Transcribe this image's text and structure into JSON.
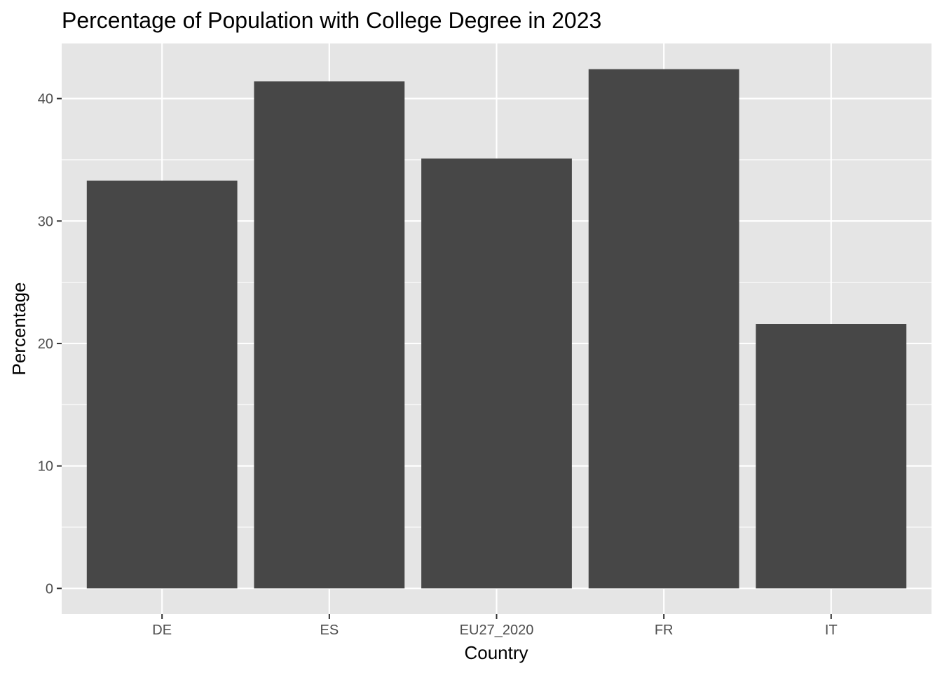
{
  "chart_data": {
    "type": "bar",
    "title": "Percentage of Population with College Degree in 2023",
    "xlabel": "Country",
    "ylabel": "Percentage",
    "categories": [
      "DE",
      "ES",
      "EU27_2020",
      "FR",
      "IT"
    ],
    "values": [
      33.3,
      41.4,
      35.1,
      42.4,
      21.6
    ],
    "ylim": [
      -2.1,
      44.5
    ],
    "yticks": [
      "0",
      "10",
      "20",
      "30",
      "40"
    ],
    "grid": true,
    "colors": {
      "bar": "#474747",
      "panel": "#e5e5e5",
      "grid": "#ffffff",
      "tick": "#333333"
    }
  }
}
